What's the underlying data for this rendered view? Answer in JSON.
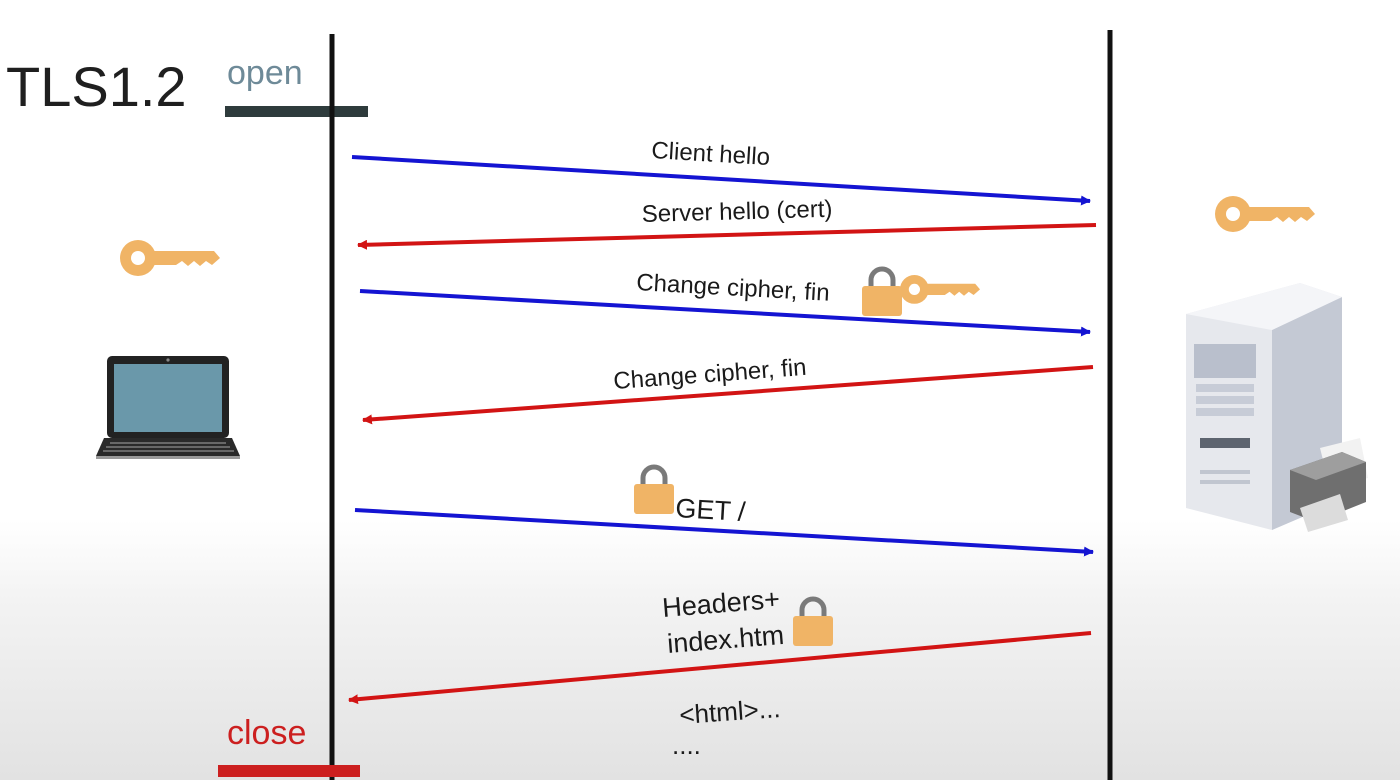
{
  "title": "TLS1.2",
  "open_label": "open",
  "close_label": "close",
  "messages": [
    {
      "label": "Client hello",
      "direction": "client-to-server"
    },
    {
      "label": "Server hello (cert)",
      "direction": "server-to-client"
    },
    {
      "label": "Change cipher, fin",
      "direction": "client-to-server"
    },
    {
      "label": "Change cipher, fin",
      "direction": "server-to-client"
    },
    {
      "label": "GET /",
      "direction": "client-to-server"
    },
    {
      "label_line1": "Headers+",
      "label_line2": "index.htm",
      "direction": "server-to-client"
    }
  ],
  "response_body": [
    "<html>...",
    "...."
  ],
  "colors": {
    "client_to_server": "#1414d2",
    "server_to_client": "#d21414",
    "open_label": "#6e8a98",
    "open_bar": "#2e3b3c",
    "close": "#cc1f1f",
    "key": "#f0b466",
    "lock_body": "#f0b466",
    "laptop_screen": "#6a98aa"
  },
  "icons": [
    "key-icon",
    "lock-icon",
    "laptop-icon",
    "server-icon"
  ]
}
